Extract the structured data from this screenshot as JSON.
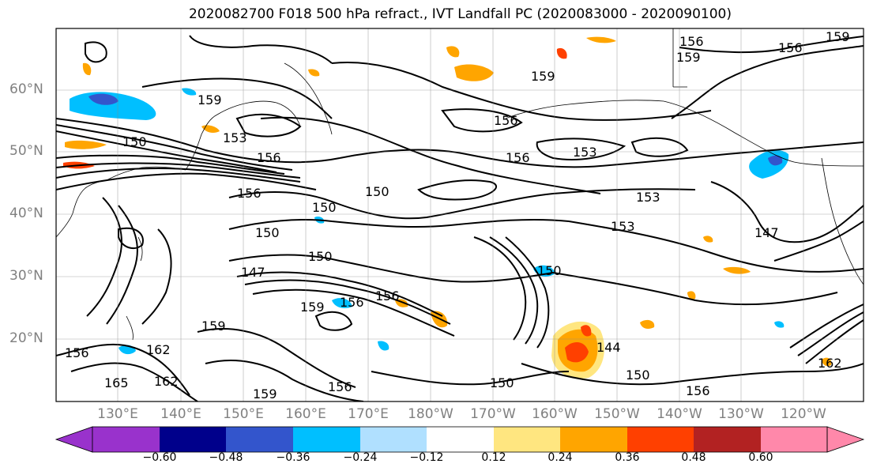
{
  "title": "2020082700 F018 500 hPa refract., IVT Landfall PC (2020083000 - 2020090100)",
  "lat_labels": [
    "60°N",
    "50°N",
    "40°N",
    "30°N",
    "20°N"
  ],
  "lon_labels": [
    "130°E",
    "140°E",
    "150°E",
    "160°E",
    "170°E",
    "180°W",
    "170°W",
    "160°W",
    "150°W",
    "140°W",
    "130°W",
    "120°W"
  ],
  "contour_labels": [
    "156",
    "159",
    "156",
    "159",
    "159",
    "159",
    "150",
    "153",
    "156",
    "156",
    "153",
    "156",
    "150",
    "156",
    "150",
    "153",
    "153",
    "147",
    "150",
    "147",
    "150",
    "159",
    "156",
    "156",
    "150",
    "162",
    "165",
    "162",
    "159",
    "156",
    "150",
    "159",
    "156",
    "144",
    "150",
    "156",
    "162"
  ],
  "colorbar": {
    "ticks": [
      "−0.60",
      "−0.48",
      "−0.36",
      "−0.24",
      "−0.12",
      "0.12",
      "0.24",
      "0.36",
      "0.48",
      "0.60"
    ],
    "colors": [
      "#9932cc",
      "#00008b",
      "#3355cc",
      "#00bfff",
      "#b0e0ff",
      "#ffffff",
      "#ffe680",
      "#ffa500",
      "#ff4000",
      "#b22222",
      "#ff88aa"
    ]
  }
}
